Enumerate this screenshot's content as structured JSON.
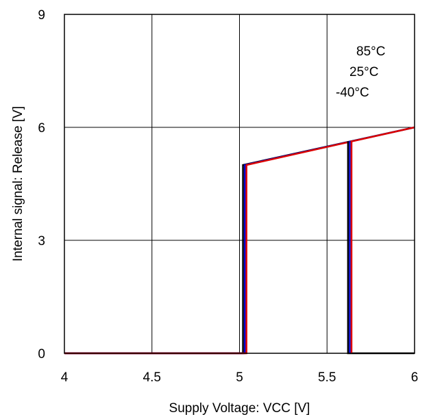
{
  "chart_data": {
    "type": "line",
    "title": "",
    "xlabel": "Supply Voltage: VCC [V]",
    "ylabel": "Internal signal: Release [V]",
    "xlim": [
      4,
      6
    ],
    "ylim": [
      0,
      9
    ],
    "x_ticks": [
      4,
      4.5,
      5,
      5.5,
      6
    ],
    "x_tick_labels": [
      "4",
      "4.5",
      "5",
      "5.5",
      "6"
    ],
    "y_ticks": [
      0,
      3,
      6,
      9
    ],
    "y_tick_labels": [
      "0",
      "3",
      "6",
      "9"
    ],
    "grid": true,
    "legend_entries": [
      "85°C",
      "25°C",
      "-40°C"
    ],
    "series": [
      {
        "color": "#000000",
        "points": [
          [
            4,
            0
          ],
          [
            5.02,
            0
          ],
          [
            5.02,
            5.0
          ],
          [
            6,
            6.0
          ]
        ]
      },
      {
        "color": "#0000cc",
        "points": [
          [
            4,
            0
          ],
          [
            5.03,
            0
          ],
          [
            5.03,
            5.0
          ],
          [
            6,
            6.0
          ]
        ]
      },
      {
        "color": "#dd0000",
        "points": [
          [
            4,
            0
          ],
          [
            5.04,
            0
          ],
          [
            5.04,
            5.0
          ],
          [
            6,
            6.0
          ]
        ]
      },
      {
        "color": "#000000",
        "points": [
          [
            5.62,
            5.63
          ],
          [
            5.62,
            0
          ],
          [
            6,
            0
          ]
        ]
      },
      {
        "color": "#0000cc",
        "points": [
          [
            5.63,
            5.64
          ],
          [
            5.63,
            0
          ]
        ]
      },
      {
        "color": "#dd0000",
        "points": [
          [
            5.64,
            5.65
          ],
          [
            5.64,
            0
          ]
        ]
      }
    ]
  }
}
